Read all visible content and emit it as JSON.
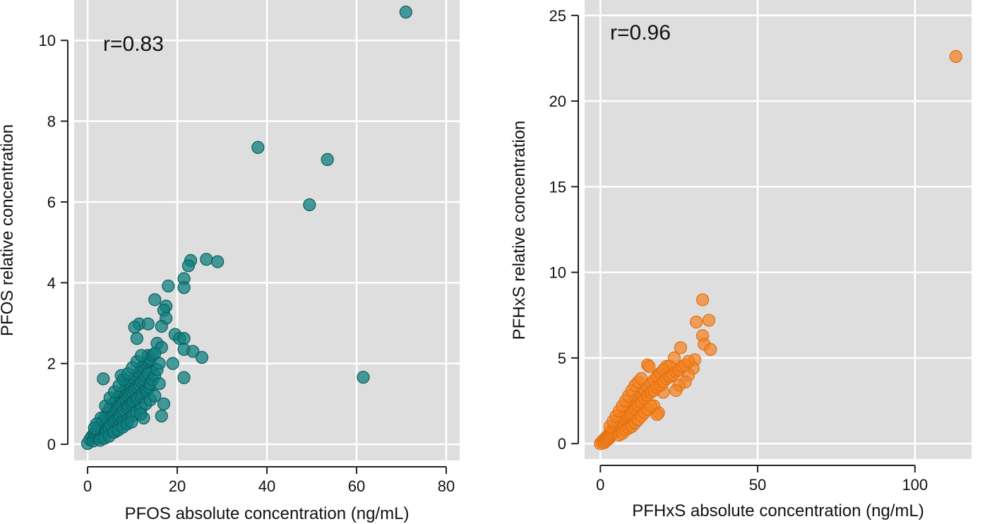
{
  "chart_data": [
    {
      "type": "scatter",
      "panel": "left",
      "annotation": "r=0.83",
      "xlabel": "PFOS absolute concentration (ng/mL)",
      "ylabel": "PFOS relative concentration",
      "xlim": [
        -3,
        83
      ],
      "ylim": [
        -0.4,
        11.0
      ],
      "xticks": [
        0,
        20,
        40,
        60,
        80
      ],
      "xtick_labels": [
        "0",
        "20",
        "40",
        "60",
        "80"
      ],
      "yticks": [
        0,
        2,
        4,
        6,
        8,
        10
      ],
      "ytick_labels": [
        "0",
        "2",
        "4",
        "6",
        "8",
        "10"
      ],
      "grid": true,
      "point_color": "#0f7f7f",
      "point_edge": "#0a5f5f",
      "point_opacity": 0.75,
      "points": [
        [
          71,
          10.7
        ],
        [
          38,
          7.35
        ],
        [
          53.5,
          7.05
        ],
        [
          49.5,
          5.93
        ],
        [
          61.5,
          1.66
        ],
        [
          26.5,
          4.58
        ],
        [
          29,
          4.52
        ],
        [
          23,
          4.55
        ],
        [
          22.5,
          4.42
        ],
        [
          21.5,
          4.1
        ],
        [
          21.5,
          3.88
        ],
        [
          18,
          3.92
        ],
        [
          15,
          3.58
        ],
        [
          17.5,
          3.42
        ],
        [
          17,
          3.32
        ],
        [
          17.5,
          3.12
        ],
        [
          11.5,
          2.98
        ],
        [
          13.5,
          2.98
        ],
        [
          10.5,
          2.9
        ],
        [
          11,
          2.62
        ],
        [
          16.5,
          2.92
        ],
        [
          19.5,
          2.72
        ],
        [
          20.5,
          2.62
        ],
        [
          21.5,
          2.62
        ],
        [
          15.5,
          2.5
        ],
        [
          16.5,
          2.4
        ],
        [
          21.5,
          2.35
        ],
        [
          23.5,
          2.3
        ],
        [
          25.5,
          2.15
        ],
        [
          21.5,
          1.65
        ],
        [
          3.5,
          1.62
        ],
        [
          7.5,
          1.7
        ],
        [
          8.5,
          1.6
        ],
        [
          13.5,
          2.2
        ],
        [
          14,
          1.8
        ],
        [
          12,
          1.9
        ],
        [
          19,
          2.0
        ],
        [
          17,
          1.0
        ],
        [
          16.5,
          0.7
        ],
        [
          12.5,
          0.65
        ],
        [
          5,
          0.35
        ],
        [
          0,
          0.02
        ],
        [
          0.5,
          0.12
        ],
        [
          1,
          0.2
        ],
        [
          1.2,
          0.08
        ],
        [
          1.5,
          0.28
        ],
        [
          1.8,
          0.18
        ],
        [
          2,
          0.35
        ],
        [
          2.2,
          0.25
        ],
        [
          2.5,
          0.42
        ],
        [
          2.6,
          0.15
        ],
        [
          3,
          0.5
        ],
        [
          3,
          0.3
        ],
        [
          3.2,
          0.2
        ],
        [
          3.5,
          0.6
        ],
        [
          3.6,
          0.38
        ],
        [
          4,
          0.7
        ],
        [
          4,
          0.45
        ],
        [
          4.2,
          0.3
        ],
        [
          4.5,
          0.8
        ],
        [
          4.5,
          0.55
        ],
        [
          4.8,
          0.4
        ],
        [
          5,
          0.9
        ],
        [
          5,
          0.62
        ],
        [
          5.2,
          0.48
        ],
        [
          5.5,
          1.0
        ],
        [
          5.5,
          0.7
        ],
        [
          5.8,
          0.55
        ],
        [
          6,
          1.05
        ],
        [
          6,
          0.78
        ],
        [
          6.2,
          0.6
        ],
        [
          6.5,
          1.1
        ],
        [
          6.5,
          0.85
        ],
        [
          6.8,
          0.65
        ],
        [
          7,
          1.2
        ],
        [
          7,
          0.9
        ],
        [
          7.2,
          0.72
        ],
        [
          7.5,
          1.25
        ],
        [
          7.5,
          0.98
        ],
        [
          7.8,
          0.78
        ],
        [
          8,
          1.3
        ],
        [
          8,
          1.05
        ],
        [
          8.2,
          0.85
        ],
        [
          8.5,
          1.4
        ],
        [
          8.5,
          1.1
        ],
        [
          8.8,
          0.9
        ],
        [
          9,
          1.45
        ],
        [
          9,
          1.18
        ],
        [
          9.2,
          0.95
        ],
        [
          9.5,
          1.5
        ],
        [
          9.5,
          1.25
        ],
        [
          9.8,
          1.0
        ],
        [
          10,
          1.55
        ],
        [
          10,
          1.3
        ],
        [
          10.2,
          1.05
        ],
        [
          10.5,
          1.62
        ],
        [
          10.5,
          1.35
        ],
        [
          10.8,
          1.1
        ],
        [
          11,
          1.7
        ],
        [
          11,
          1.42
        ],
        [
          11.2,
          1.15
        ],
        [
          11.5,
          1.78
        ],
        [
          11.5,
          1.48
        ],
        [
          11.8,
          1.2
        ],
        [
          12,
          1.85
        ],
        [
          12,
          1.55
        ],
        [
          12.2,
          1.25
        ],
        [
          12.5,
          1.92
        ],
        [
          12.5,
          1.6
        ],
        [
          12.8,
          1.3
        ],
        [
          13,
          2.0
        ],
        [
          13,
          1.68
        ],
        [
          13.2,
          1.35
        ],
        [
          13.5,
          2.05
        ],
        [
          13.5,
          1.75
        ],
        [
          13.8,
          1.4
        ],
        [
          14,
          2.1
        ],
        [
          14,
          1.5
        ],
        [
          14.5,
          2.2
        ],
        [
          14.5,
          1.6
        ],
        [
          15,
          2.25
        ],
        [
          15,
          1.7
        ],
        [
          15.5,
          1.85
        ],
        [
          16,
          2.0
        ],
        [
          16,
          1.5
        ],
        [
          6,
          0.3
        ],
        [
          7,
          0.45
        ],
        [
          8,
          0.55
        ],
        [
          9,
          0.6
        ],
        [
          10,
          0.7
        ],
        [
          11,
          0.8
        ],
        [
          12,
          0.9
        ],
        [
          13,
          1.0
        ],
        [
          14,
          1.1
        ],
        [
          15,
          1.2
        ],
        [
          3,
          0.65
        ],
        [
          4,
          0.95
        ],
        [
          5,
          1.15
        ],
        [
          6,
          1.3
        ],
        [
          7,
          1.45
        ],
        [
          8,
          1.6
        ],
        [
          9,
          1.75
        ],
        [
          10,
          1.9
        ],
        [
          11,
          2.05
        ],
        [
          12,
          2.2
        ],
        [
          2,
          0.5
        ],
        [
          1.5,
          0.4
        ],
        [
          2.8,
          0.1
        ],
        [
          3.8,
          0.15
        ],
        [
          4.8,
          0.2
        ],
        [
          5.8,
          0.3
        ],
        [
          6.8,
          0.35
        ],
        [
          7.8,
          0.42
        ],
        [
          8.8,
          0.5
        ],
        [
          9.8,
          0.55
        ],
        [
          11.8,
          0.75
        ]
      ]
    },
    {
      "type": "scatter",
      "panel": "right",
      "annotation": "r=0.96",
      "xlabel": "PFHxS absolute concentration (ng/mL)",
      "ylabel": "PFHxS relative concentration",
      "xlim": [
        -5,
        118
      ],
      "ylim": [
        -0.9,
        25.9
      ],
      "xticks": [
        0,
        50,
        100
      ],
      "xtick_labels": [
        "0",
        "50",
        "100"
      ],
      "yticks": [
        0,
        5,
        10,
        15,
        20,
        25
      ],
      "ytick_labels": [
        "0",
        "5",
        "10",
        "15",
        "20",
        "25"
      ],
      "grid": true,
      "point_color": "#f5821f",
      "point_edge": "#e07010",
      "point_opacity": 0.7,
      "points": [
        [
          113,
          22.6
        ],
        [
          32.5,
          8.4
        ],
        [
          30.5,
          7.1
        ],
        [
          34.5,
          7.2
        ],
        [
          32.5,
          6.3
        ],
        [
          33,
          5.8
        ],
        [
          35,
          5.5
        ],
        [
          25.5,
          5.6
        ],
        [
          23.5,
          5.0
        ],
        [
          21,
          4.5
        ],
        [
          15,
          4.6
        ],
        [
          15.5,
          4.5
        ],
        [
          18.5,
          4.0
        ],
        [
          22,
          4.5
        ],
        [
          30,
          4.9
        ],
        [
          29.5,
          4.4
        ],
        [
          28,
          4.0
        ],
        [
          27,
          3.6
        ],
        [
          25,
          3.4
        ],
        [
          24,
          3.1
        ],
        [
          20,
          3.0
        ],
        [
          17,
          2.2
        ],
        [
          18.5,
          1.8
        ],
        [
          18,
          1.7
        ],
        [
          10,
          2.0
        ],
        [
          0,
          0.0
        ],
        [
          0.5,
          0.1
        ],
        [
          1,
          0.2
        ],
        [
          1.2,
          0.05
        ],
        [
          1.5,
          0.3
        ],
        [
          1.8,
          0.15
        ],
        [
          2,
          0.4
        ],
        [
          2.2,
          0.25
        ],
        [
          2.5,
          0.5
        ],
        [
          2.8,
          0.3
        ],
        [
          3,
          0.6
        ],
        [
          3,
          0.4
        ],
        [
          3.5,
          0.75
        ],
        [
          3.5,
          0.5
        ],
        [
          4,
          0.85
        ],
        [
          4,
          0.6
        ],
        [
          4.5,
          1.0
        ],
        [
          4.5,
          0.7
        ],
        [
          5,
          1.1
        ],
        [
          5,
          0.8
        ],
        [
          5.5,
          1.2
        ],
        [
          5.5,
          0.9
        ],
        [
          6,
          1.35
        ],
        [
          6,
          1.0
        ],
        [
          6.5,
          1.45
        ],
        [
          6.5,
          1.1
        ],
        [
          7,
          1.55
        ],
        [
          7,
          1.2
        ],
        [
          7.5,
          1.7
        ],
        [
          7.5,
          1.3
        ],
        [
          8,
          1.8
        ],
        [
          8,
          1.4
        ],
        [
          8.5,
          1.95
        ],
        [
          8.5,
          1.5
        ],
        [
          9,
          2.05
        ],
        [
          9,
          1.6
        ],
        [
          9.5,
          2.2
        ],
        [
          9.5,
          1.7
        ],
        [
          10,
          2.3
        ],
        [
          10,
          1.8
        ],
        [
          11,
          2.5
        ],
        [
          11,
          2.0
        ],
        [
          12,
          2.7
        ],
        [
          12,
          2.2
        ],
        [
          13,
          2.9
        ],
        [
          13,
          2.4
        ],
        [
          14,
          3.1
        ],
        [
          14,
          2.6
        ],
        [
          15,
          3.3
        ],
        [
          15,
          2.8
        ],
        [
          16,
          3.5
        ],
        [
          16,
          3.0
        ],
        [
          17,
          3.7
        ],
        [
          17,
          3.1
        ],
        [
          18,
          3.9
        ],
        [
          18,
          3.3
        ],
        [
          19,
          4.1
        ],
        [
          19,
          3.4
        ],
        [
          20,
          4.3
        ],
        [
          20,
          3.6
        ],
        [
          21,
          3.8
        ],
        [
          22,
          3.9
        ],
        [
          23,
          4.0
        ],
        [
          24,
          4.2
        ],
        [
          25,
          4.3
        ],
        [
          26,
          4.5
        ],
        [
          27,
          4.6
        ],
        [
          28,
          4.8
        ],
        [
          6,
          0.5
        ],
        [
          7,
          0.6
        ],
        [
          8,
          0.8
        ],
        [
          9,
          0.9
        ],
        [
          10,
          1.0
        ],
        [
          11,
          1.2
        ],
        [
          12,
          1.4
        ],
        [
          13,
          1.6
        ],
        [
          14,
          1.8
        ],
        [
          15,
          2.0
        ],
        [
          16,
          2.2
        ],
        [
          3,
          1.0
        ],
        [
          4,
          1.3
        ],
        [
          5,
          1.6
        ],
        [
          6,
          1.9
        ],
        [
          7,
          2.2
        ],
        [
          8,
          2.5
        ],
        [
          9,
          2.8
        ],
        [
          10,
          3.1
        ],
        [
          11,
          3.4
        ],
        [
          12,
          3.6
        ],
        [
          13,
          3.8
        ]
      ]
    }
  ]
}
